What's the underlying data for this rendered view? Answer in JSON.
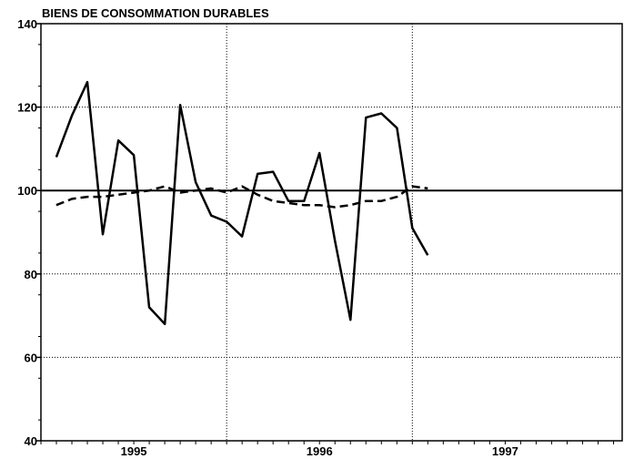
{
  "chart_data": {
    "type": "line",
    "title": "BIENS DE CONSOMMATION DURABLES",
    "x": [
      1995.083,
      1995.167,
      1995.25,
      1995.333,
      1995.417,
      1995.5,
      1995.583,
      1995.667,
      1995.75,
      1995.833,
      1995.917,
      1996.0,
      1996.083,
      1996.167,
      1996.25,
      1996.333,
      1996.417,
      1996.5,
      1996.583,
      1996.667,
      1996.75,
      1996.833,
      1996.917,
      1997.0,
      1997.083
    ],
    "series": [
      {
        "color": "#000000",
        "dash": false,
        "values": [
          108,
          118,
          126,
          89.5,
          112,
          108.5,
          72,
          68,
          120.5,
          102,
          94,
          92.5,
          89,
          104,
          104.5,
          97.5,
          97.5,
          109,
          88,
          69,
          117.5,
          118.5,
          115,
          91,
          84.5
        ]
      },
      {
        "color": "#000000",
        "dash": true,
        "values": [
          96.5,
          98,
          98.5,
          98.5,
          99,
          99.5,
          100,
          101,
          99.5,
          100,
          100.5,
          99.5,
          101,
          99,
          97.5,
          97,
          96.5,
          96.5,
          96,
          96.5,
          97.5,
          97.5,
          98.5,
          101,
          100.5
        ]
      }
    ],
    "xlim": [
      1995,
      1998.13
    ],
    "xticks": [
      {
        "value": 1995.5,
        "label": "1995"
      },
      {
        "value": 1996.5,
        "label": "1996"
      },
      {
        "value": 1997.5,
        "label": "1997"
      }
    ],
    "xgrid": [
      1996,
      1997
    ],
    "ylim": [
      40,
      140
    ],
    "yticks": [
      40,
      60,
      80,
      100,
      120,
      140
    ],
    "baseline": 100,
    "grid": true
  }
}
